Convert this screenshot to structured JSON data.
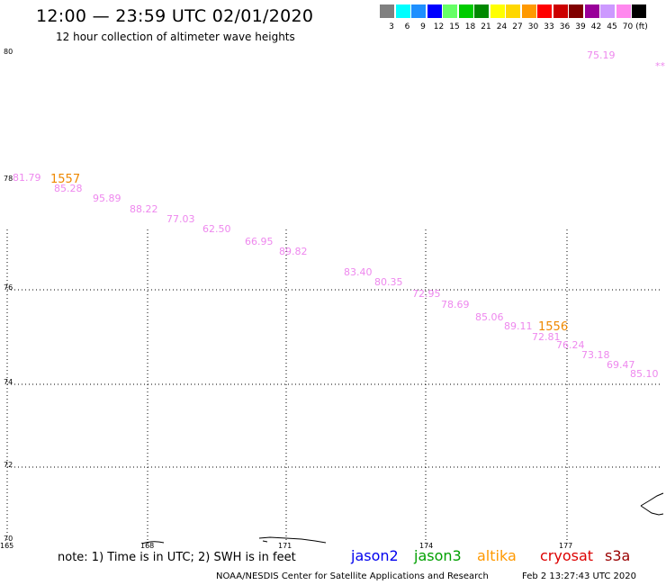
{
  "header": {
    "title": "12:00 — 23:59 UTC 02/01/2020",
    "subtitle": "12 hour collection of altimeter wave heights"
  },
  "color_scale": {
    "unit_label": "(ft)",
    "bins": [
      {
        "label": "3",
        "color": "#808080"
      },
      {
        "label": "6",
        "color": "#00ffff"
      },
      {
        "label": "9",
        "color": "#1e90ff"
      },
      {
        "label": "12",
        "color": "#0000ff"
      },
      {
        "label": "15",
        "color": "#66ff66"
      },
      {
        "label": "18",
        "color": "#00cc00"
      },
      {
        "label": "21",
        "color": "#008800"
      },
      {
        "label": "24",
        "color": "#ffff00"
      },
      {
        "label": "27",
        "color": "#ffd700"
      },
      {
        "label": "30",
        "color": "#ff9900"
      },
      {
        "label": "33",
        "color": "#ff0000"
      },
      {
        "label": "36",
        "color": "#cc0000"
      },
      {
        "label": "39",
        "color": "#800000"
      },
      {
        "label": "42",
        "color": "#990099"
      },
      {
        "label": "45",
        "color": "#cc99ff"
      },
      {
        "label": "70",
        "color": "#ff88ee"
      },
      {
        "label": "",
        "color": "#000000"
      }
    ]
  },
  "map": {
    "lat_labels": [
      {
        "text": "80"
      },
      {
        "text": "78"
      },
      {
        "text": "76"
      },
      {
        "text": "74"
      },
      {
        "text": "72"
      },
      {
        "text": "70"
      }
    ],
    "lon_labels": [
      {
        "text": "165"
      },
      {
        "text": "168"
      },
      {
        "text": "171"
      },
      {
        "text": "174"
      },
      {
        "text": "177"
      }
    ],
    "wave_point_color": "#ee88ee",
    "time_label_color": "#ee8800",
    "wave_points": [
      {
        "text": "81.79"
      },
      {
        "text": "85.28"
      },
      {
        "text": "95.89"
      },
      {
        "text": "88.22"
      },
      {
        "text": "77.03"
      },
      {
        "text": "62.50"
      },
      {
        "text": "66.95"
      },
      {
        "text": "89.82"
      },
      {
        "text": "83.40"
      },
      {
        "text": "80.35"
      },
      {
        "text": "72.95"
      },
      {
        "text": "78.69"
      },
      {
        "text": "85.06"
      },
      {
        "text": "89.11"
      },
      {
        "text": "72.81"
      },
      {
        "text": "76.24"
      },
      {
        "text": "73.18"
      },
      {
        "text": "69.47"
      },
      {
        "text": "85.10"
      },
      {
        "text": "75.19"
      },
      {
        "text": "**"
      }
    ],
    "time_labels": [
      {
        "text": "1557"
      },
      {
        "text": "1556"
      }
    ]
  },
  "footer": {
    "note": "note:  1) Time is in UTC;  2) SWH is in feet",
    "satellites": [
      {
        "name": "jason2",
        "color": "#0000ee"
      },
      {
        "name": "jason3",
        "color": "#00a000"
      },
      {
        "name": "altika",
        "color": "#ff9900"
      },
      {
        "name": "cryosat",
        "color": "#dd0000"
      },
      {
        "name": "s3a",
        "color": "#990000"
      }
    ],
    "credit": "NOAA/NESDIS Center for Satellite Applications and Research",
    "timestamp": "Feb  2 13:27:43 UTC 2020"
  }
}
